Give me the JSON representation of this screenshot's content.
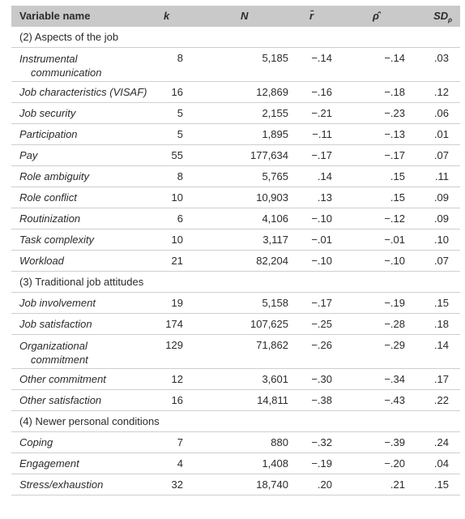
{
  "header": {
    "variable": "Variable name",
    "k": "k",
    "N": "N",
    "r": "r̄",
    "rho": "ρ̂",
    "sd": "SD",
    "sd_sub": "ρ"
  },
  "sections": [
    {
      "title": "(2) Aspects of the job",
      "rows": [
        {
          "name": [
            "Instrumental",
            "communication"
          ],
          "k": "8",
          "N": "5,185",
          "r": "−.14",
          "rho": "−.14",
          "sd": ".03"
        },
        {
          "name": [
            "Job characteristics (VISAF)"
          ],
          "k": "16",
          "N": "12,869",
          "r": "−.16",
          "rho": "−.18",
          "sd": ".12"
        },
        {
          "name": [
            "Job security"
          ],
          "k": "5",
          "N": "2,155",
          "r": "−.21",
          "rho": "−.23",
          "sd": ".06"
        },
        {
          "name": [
            "Participation"
          ],
          "k": "5",
          "N": "1,895",
          "r": "−.11",
          "rho": "−.13",
          "sd": ".01"
        },
        {
          "name": [
            "Pay"
          ],
          "k": "55",
          "N": "177,634",
          "r": "−.17",
          "rho": "−.17",
          "sd": ".07"
        },
        {
          "name": [
            "Role ambiguity"
          ],
          "k": "8",
          "N": "5,765",
          "r": ".14",
          "rho": ".15",
          "sd": ".11"
        },
        {
          "name": [
            "Role conflict"
          ],
          "k": "10",
          "N": "10,903",
          "r": ".13",
          "rho": ".15",
          "sd": ".09"
        },
        {
          "name": [
            "Routinization"
          ],
          "k": "6",
          "N": "4,106",
          "r": "−.10",
          "rho": "−.12",
          "sd": ".09"
        },
        {
          "name": [
            "Task complexity"
          ],
          "k": "10",
          "N": "3,117",
          "r": "−.01",
          "rho": "−.01",
          "sd": ".10"
        },
        {
          "name": [
            "Workload"
          ],
          "k": "21",
          "N": "82,204",
          "r": "−.10",
          "rho": "−.10",
          "sd": ".07"
        }
      ]
    },
    {
      "title": "(3) Traditional job attitudes",
      "rows": [
        {
          "name": [
            "Job involvement"
          ],
          "k": "19",
          "N": "5,158",
          "r": "−.17",
          "rho": "−.19",
          "sd": ".15"
        },
        {
          "name": [
            "Job satisfaction"
          ],
          "k": "174",
          "N": "107,625",
          "r": "−.25",
          "rho": "−.28",
          "sd": ".18"
        },
        {
          "name": [
            "Organizational",
            "commitment"
          ],
          "k": "129",
          "N": "71,862",
          "r": "−.26",
          "rho": "−.29",
          "sd": ".14"
        },
        {
          "name": [
            "Other commitment"
          ],
          "k": "12",
          "N": "3,601",
          "r": "−.30",
          "rho": "−.34",
          "sd": ".17"
        },
        {
          "name": [
            "Other satisfaction"
          ],
          "k": "16",
          "N": "14,811",
          "r": "−.38",
          "rho": "−.43",
          "sd": ".22"
        }
      ]
    },
    {
      "title": "(4) Newer personal conditions",
      "rows": [
        {
          "name": [
            "Coping"
          ],
          "k": "7",
          "N": "880",
          "r": "−.32",
          "rho": "−.39",
          "sd": ".24"
        },
        {
          "name": [
            "Engagement"
          ],
          "k": "4",
          "N": "1,408",
          "r": "−.19",
          "rho": "−.20",
          "sd": ".04"
        },
        {
          "name": [
            "Stress/exhaustion"
          ],
          "k": "32",
          "N": "18,740",
          "r": ".20",
          "rho": ".21",
          "sd": ".15"
        }
      ]
    }
  ]
}
